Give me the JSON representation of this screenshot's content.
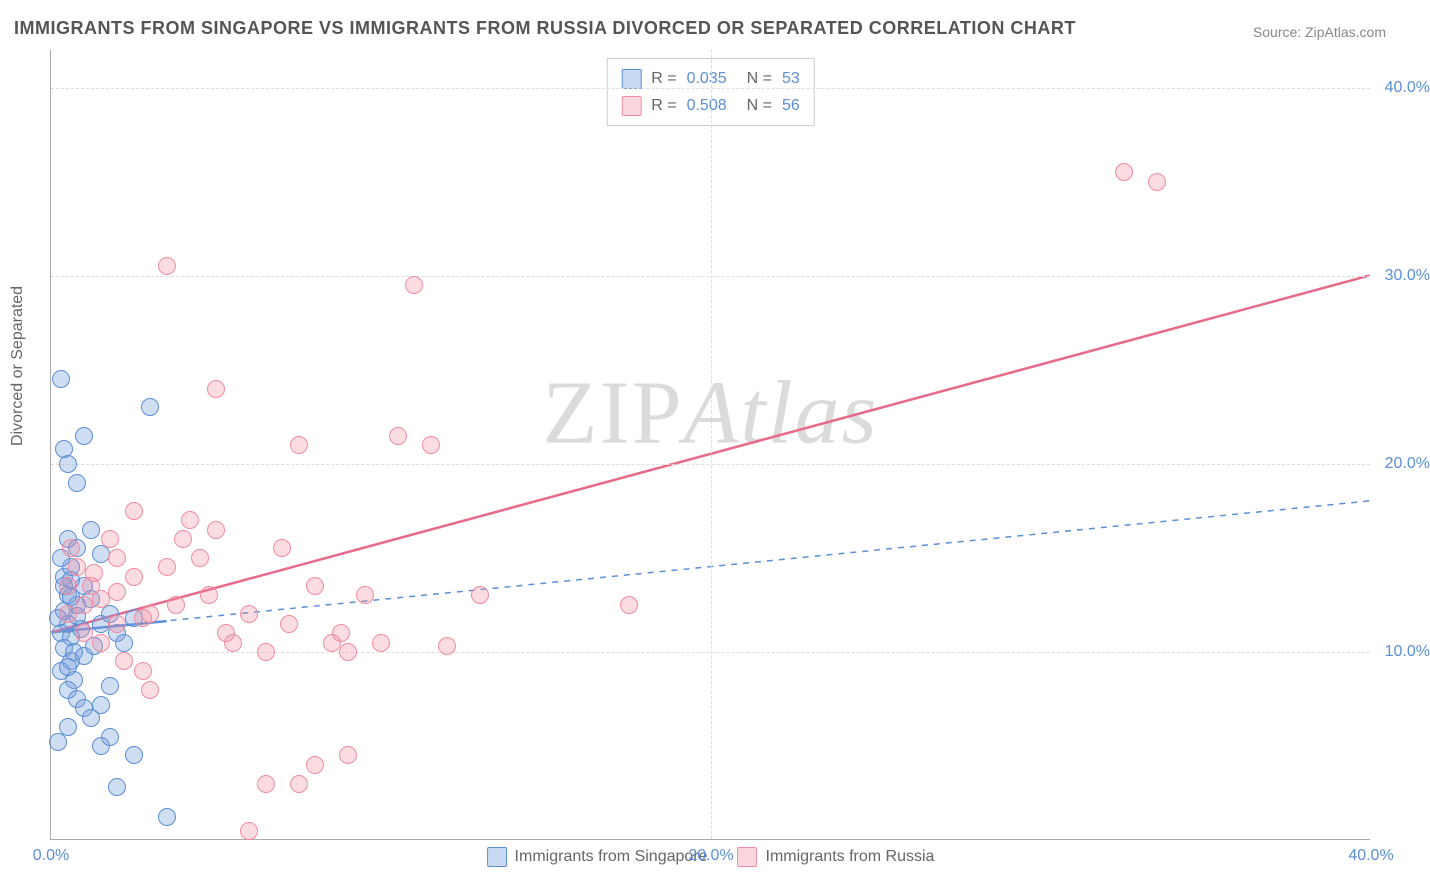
{
  "title": "IMMIGRANTS FROM SINGAPORE VS IMMIGRANTS FROM RUSSIA DIVORCED OR SEPARATED CORRELATION CHART",
  "source": "Source: ZipAtlas.com",
  "ylabel": "Divorced or Separated",
  "watermark_zip": "ZIP",
  "watermark_atlas": "Atlas",
  "chart": {
    "type": "scatter",
    "xlim": [
      0,
      40
    ],
    "ylim": [
      0,
      42
    ],
    "x_ticks": [
      0,
      20,
      40
    ],
    "x_tick_labels": [
      "0.0%",
      "20.0%",
      "40.0%"
    ],
    "y_ticks": [
      10,
      20,
      30,
      40
    ],
    "y_tick_labels": [
      "10.0%",
      "20.0%",
      "30.0%",
      "40.0%"
    ],
    "grid_color": "#dddddd",
    "background_color": "#ffffff",
    "axis_color": "#aaaaaa",
    "marker_radius": 9,
    "series": [
      {
        "label": "Immigrants from Singapore",
        "color_fill": "rgba(120,160,220,0.35)",
        "color_stroke": "#5b8fd6",
        "r_value": "0.035",
        "n_value": "53",
        "trend": {
          "x1": 0,
          "y1": 11.0,
          "x2": 40,
          "y2": 18.0,
          "dash": "6,6",
          "width": 1.5
        },
        "trend_solid": {
          "x1": 0,
          "y1": 11.0,
          "x2": 3.5,
          "y2": 11.6,
          "dash": null,
          "width": 2.5
        },
        "points": [
          [
            0.5,
            11.5
          ],
          [
            0.3,
            11.0
          ],
          [
            0.4,
            12.2
          ],
          [
            0.6,
            10.8
          ],
          [
            0.2,
            11.8
          ],
          [
            0.8,
            12.5
          ],
          [
            0.5,
            13.0
          ],
          [
            0.4,
            10.2
          ],
          [
            0.6,
            9.5
          ],
          [
            0.3,
            9.0
          ],
          [
            0.7,
            8.5
          ],
          [
            0.5,
            8.0
          ],
          [
            0.8,
            7.5
          ],
          [
            1.0,
            7.0
          ],
          [
            1.2,
            6.5
          ],
          [
            0.5,
            6.0
          ],
          [
            0.4,
            14.0
          ],
          [
            0.6,
            14.5
          ],
          [
            0.3,
            15.0
          ],
          [
            0.8,
            15.5
          ],
          [
            0.5,
            16.0
          ],
          [
            1.0,
            13.5
          ],
          [
            1.2,
            12.8
          ],
          [
            1.5,
            11.5
          ],
          [
            1.8,
            12.0
          ],
          [
            2.0,
            11.0
          ],
          [
            2.2,
            10.5
          ],
          [
            2.5,
            11.8
          ],
          [
            0.2,
            5.2
          ],
          [
            1.5,
            5.0
          ],
          [
            1.8,
            5.5
          ],
          [
            2.5,
            4.5
          ],
          [
            0.5,
            20.0
          ],
          [
            0.4,
            20.8
          ],
          [
            0.8,
            19.0
          ],
          [
            0.3,
            24.5
          ],
          [
            3.0,
            23.0
          ],
          [
            1.0,
            21.5
          ],
          [
            1.2,
            16.5
          ],
          [
            1.5,
            15.2
          ],
          [
            0.6,
            12.9
          ],
          [
            0.9,
            11.2
          ],
          [
            0.4,
            13.5
          ],
          [
            0.7,
            10.0
          ],
          [
            0.5,
            9.2
          ],
          [
            1.0,
            9.8
          ],
          [
            1.3,
            10.3
          ],
          [
            0.8,
            11.9
          ],
          [
            0.6,
            13.8
          ],
          [
            3.5,
            1.2
          ],
          [
            2.0,
            2.8
          ],
          [
            1.8,
            8.2
          ],
          [
            1.5,
            7.2
          ]
        ]
      },
      {
        "label": "Immigrants from Russia",
        "color_fill": "rgba(240,140,160,0.30)",
        "color_stroke": "#f08ca0",
        "r_value": "0.508",
        "n_value": "56",
        "trend": {
          "x1": 0,
          "y1": 11.0,
          "x2": 40,
          "y2": 30.0,
          "dash": null,
          "width": 2.5
        },
        "points": [
          [
            0.5,
            12.0
          ],
          [
            1.0,
            12.5
          ],
          [
            1.2,
            13.5
          ],
          [
            0.8,
            14.5
          ],
          [
            1.5,
            12.8
          ],
          [
            2.0,
            13.2
          ],
          [
            2.5,
            14.0
          ],
          [
            0.6,
            15.5
          ],
          [
            1.0,
            11.0
          ],
          [
            1.5,
            10.5
          ],
          [
            2.0,
            11.5
          ],
          [
            2.2,
            9.5
          ],
          [
            2.8,
            9.0
          ],
          [
            3.0,
            12.0
          ],
          [
            3.5,
            14.5
          ],
          [
            4.0,
            16.0
          ],
          [
            4.5,
            15.0
          ],
          [
            5.0,
            16.5
          ],
          [
            5.5,
            10.5
          ],
          [
            6.0,
            12.0
          ],
          [
            6.5,
            10.0
          ],
          [
            7.0,
            15.5
          ],
          [
            7.5,
            21.0
          ],
          [
            8.0,
            13.5
          ],
          [
            8.5,
            10.5
          ],
          [
            9.0,
            10.0
          ],
          [
            9.5,
            13.0
          ],
          [
            10.0,
            10.5
          ],
          [
            10.5,
            21.5
          ],
          [
            11.0,
            29.5
          ],
          [
            3.5,
            30.5
          ],
          [
            5.0,
            24.0
          ],
          [
            2.5,
            17.5
          ],
          [
            3.0,
            8.0
          ],
          [
            6.5,
            3.0
          ],
          [
            7.5,
            3.0
          ],
          [
            8.0,
            4.0
          ],
          [
            9.0,
            4.5
          ],
          [
            11.5,
            21.0
          ],
          [
            13.0,
            13.0
          ],
          [
            17.5,
            12.5
          ],
          [
            32.5,
            35.5
          ],
          [
            33.5,
            35.0
          ],
          [
            1.8,
            16.0
          ],
          [
            4.2,
            17.0
          ],
          [
            2.8,
            11.8
          ],
          [
            5.3,
            11.0
          ],
          [
            0.5,
            13.5
          ],
          [
            1.3,
            14.2
          ],
          [
            2.0,
            15.0
          ],
          [
            3.8,
            12.5
          ],
          [
            4.8,
            13.0
          ],
          [
            7.2,
            11.5
          ],
          [
            8.8,
            11.0
          ],
          [
            12.0,
            10.3
          ],
          [
            6.0,
            0.5
          ]
        ]
      }
    ]
  },
  "legend_top_labels": {
    "R": "R =",
    "N": "N ="
  },
  "legend_bottom": [
    "Immigrants from Singapore",
    "Immigrants from Russia"
  ]
}
